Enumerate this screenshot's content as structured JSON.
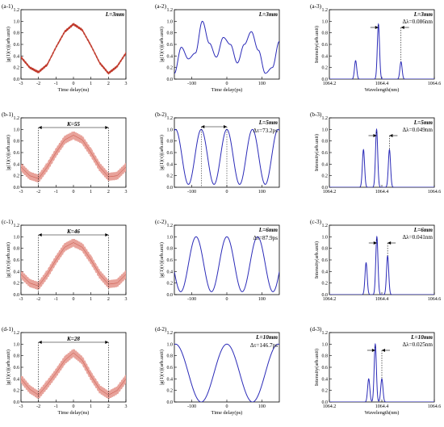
{
  "colors": {
    "envelope_trace": "#c0392b",
    "envelope_fill": "#e8a29a",
    "interferogram": "#2b2bb8",
    "spectrum": "#2b2bb8",
    "axes": "#000000"
  },
  "chart_data": [
    {
      "id": "a1",
      "type": "line",
      "panel_label": "(a-1)",
      "corner_label": "L=3mm",
      "xlabel": "Time delay(ns)",
      "ylabel": "|g(1)(τ)|(arb.unit)",
      "xlim": [
        -3,
        3
      ],
      "ylim": [
        0,
        1.2
      ],
      "xticks": [
        -3,
        -2,
        -1,
        0,
        1,
        2,
        3
      ],
      "yticks": [
        0,
        0.2,
        0.4,
        0.6,
        0.8,
        1.0,
        1.2
      ],
      "series": [
        {
          "values_x": [
            -3,
            -2.5,
            -2,
            -1.5,
            -1,
            -0.5,
            0,
            0.5,
            1,
            1.5,
            2,
            2.5,
            3
          ],
          "values_y": [
            0.38,
            0.2,
            0.12,
            0.25,
            0.55,
            0.82,
            0.95,
            0.85,
            0.58,
            0.28,
            0.1,
            0.22,
            0.45
          ]
        }
      ]
    },
    {
      "id": "a2",
      "type": "line",
      "panel_label": "(a-2)",
      "corner_label": "L=3mm",
      "xlabel": "Time delay(ps)",
      "ylabel": "|g(1)(τ)|(arb.unit)",
      "xlim": [
        -150,
        150
      ],
      "ylim": [
        0,
        1.2
      ],
      "xticks": [
        -100,
        0,
        100
      ],
      "yticks": [
        0,
        0.2,
        0.4,
        0.6,
        0.8,
        1.0,
        1.2
      ],
      "series": [
        {
          "values_x": [
            -150,
            -130,
            -110,
            -90,
            -70,
            -50,
            -30,
            -10,
            10,
            30,
            50,
            70,
            90,
            110,
            130,
            150
          ],
          "values_y": [
            0.1,
            0.55,
            0.35,
            0.45,
            1.0,
            0.62,
            0.38,
            0.72,
            0.6,
            0.28,
            0.6,
            0.82,
            0.5,
            0.1,
            0.2,
            0.65
          ]
        }
      ]
    },
    {
      "id": "a3",
      "type": "line",
      "panel_label": "(a-3)",
      "corner_label": "L=3mm",
      "annotation": "Δλ=0.086nm",
      "xlabel": "Wavelength(nm)",
      "ylabel": "Intensity(arb.unit)",
      "xlim": [
        1064.2,
        1064.6
      ],
      "ylim": [
        0,
        1.2
      ],
      "xticks": [
        1064.2,
        1064.4,
        1064.6
      ],
      "yticks": [
        0,
        0.2,
        0.4,
        0.6,
        0.8,
        1.0,
        1.2
      ],
      "peaks": [
        {
          "x": 1064.3,
          "y": 0.32
        },
        {
          "x": 1064.387,
          "y": 0.95
        },
        {
          "x": 1064.473,
          "y": 0.3
        }
      ]
    },
    {
      "id": "b1",
      "type": "line",
      "panel_label": "(b-1)",
      "annotation": "K=55",
      "xlabel": "",
      "ylabel": "|g(1)(τ)|(arb.unit)",
      "xlim": [
        -3,
        3
      ],
      "ylim": [
        0,
        1.2
      ],
      "xticks": [
        -3,
        -2,
        -1,
        0,
        1,
        2,
        3
      ],
      "yticks": [
        0,
        0.2,
        0.4,
        0.6,
        0.8,
        1.0,
        1.2
      ],
      "series": [
        {
          "values_x": [
            -3,
            -2.5,
            -2,
            -1.5,
            -1,
            -0.5,
            0,
            0.5,
            1,
            1.5,
            2,
            2.5,
            3
          ],
          "values_y": [
            0.35,
            0.2,
            0.15,
            0.35,
            0.6,
            0.82,
            0.9,
            0.82,
            0.6,
            0.35,
            0.18,
            0.2,
            0.35
          ]
        }
      ]
    },
    {
      "id": "b2",
      "type": "line",
      "panel_label": "(b-2)",
      "corner_label": "L=5mm",
      "annotation": "Δτ=73.2ps",
      "xlabel": "",
      "ylabel": "|g(1)(τ)|(arb.unit)",
      "xlim": [
        -150,
        150
      ],
      "ylim": [
        0,
        1.2
      ],
      "xticks": [
        -100,
        0,
        100
      ],
      "yticks": [
        0,
        0.2,
        0.4,
        0.6,
        0.8,
        1.0,
        1.2
      ],
      "series": [
        {
          "period": 73.2,
          "peak": 1.0,
          "dip": 0.05
        }
      ]
    },
    {
      "id": "b3",
      "type": "line",
      "panel_label": "(b-3)",
      "corner_label": "L=5mm",
      "annotation": "Δλ=0.049nm",
      "xlabel": "",
      "ylabel": "Intensity(arb.unit)",
      "xlim": [
        1064.2,
        1064.6
      ],
      "ylim": [
        0,
        1.2
      ],
      "xticks": [
        1064.2,
        1064.4,
        1064.6
      ],
      "yticks": [
        0,
        0.2,
        0.4,
        0.6,
        0.8,
        1.0,
        1.2
      ],
      "peaks": [
        {
          "x": 1064.33,
          "y": 0.65
        },
        {
          "x": 1064.38,
          "y": 1.0
        },
        {
          "x": 1064.429,
          "y": 0.65
        }
      ]
    },
    {
      "id": "c1",
      "type": "line",
      "panel_label": "(c-1)",
      "annotation": "K=46",
      "xlabel": "",
      "ylabel": "|g(1)(τ)|(arb.unit)",
      "xlim": [
        -3,
        3
      ],
      "ylim": [
        0,
        1.2
      ],
      "xticks": [
        -3,
        -2,
        -1,
        0,
        1,
        2,
        3
      ],
      "yticks": [
        0,
        0.2,
        0.4,
        0.6,
        0.8,
        1.0,
        1.2
      ],
      "series": [
        {
          "values_x": [
            -3,
            -2.5,
            -2,
            -1.5,
            -1,
            -0.5,
            0,
            0.5,
            1,
            1.5,
            2,
            2.5,
            3
          ],
          "values_y": [
            0.35,
            0.2,
            0.15,
            0.35,
            0.6,
            0.82,
            0.9,
            0.82,
            0.6,
            0.35,
            0.18,
            0.2,
            0.35
          ]
        }
      ]
    },
    {
      "id": "c2",
      "type": "line",
      "panel_label": "(c-2)",
      "corner_label": "L=6mm",
      "annotation": "Δτ=87.9ps",
      "xlabel": "",
      "ylabel": "|g(1)(τ)|(arb.unit)",
      "xlim": [
        -150,
        150
      ],
      "ylim": [
        0,
        1.2
      ],
      "xticks": [
        -100,
        0,
        100
      ],
      "yticks": [
        0,
        0.2,
        0.4,
        0.6,
        0.8,
        1.0,
        1.2
      ],
      "series": [
        {
          "period": 87.9,
          "peak": 1.0,
          "dip": 0.05
        }
      ]
    },
    {
      "id": "c3",
      "type": "line",
      "panel_label": "(c-3)",
      "corner_label": "L=6mm",
      "annotation": "Δλ=0.041nm",
      "xlabel": "",
      "ylabel": "Intensity(arb.unit)",
      "xlim": [
        1064.2,
        1064.6
      ],
      "ylim": [
        0,
        1.2
      ],
      "xticks": [
        1064.2,
        1064.4,
        1064.6
      ],
      "yticks": [
        0,
        0.2,
        0.4,
        0.6,
        0.8,
        1.0,
        1.2
      ],
      "peaks": [
        {
          "x": 1064.34,
          "y": 0.55
        },
        {
          "x": 1064.381,
          "y": 1.0
        },
        {
          "x": 1064.422,
          "y": 0.67
        }
      ]
    },
    {
      "id": "d1",
      "type": "line",
      "panel_label": "(d-1)",
      "annotation": "K=28",
      "xlabel": "Time delay(ns)",
      "ylabel": "|g(1)(τ)|(arb.unit)",
      "xlim": [
        -3,
        3
      ],
      "ylim": [
        0,
        1.2
      ],
      "xticks": [
        -3,
        -2,
        -1,
        0,
        1,
        2,
        3
      ],
      "yticks": [
        0,
        0.2,
        0.4,
        0.6,
        0.8,
        1.0,
        1.2
      ],
      "series": [
        {
          "values_x": [
            -3,
            -2.5,
            -2,
            -1.5,
            -1,
            -0.5,
            0,
            0.5,
            1,
            1.5,
            2,
            2.5,
            3
          ],
          "values_y": [
            0.4,
            0.22,
            0.12,
            0.3,
            0.5,
            0.72,
            0.85,
            0.72,
            0.45,
            0.22,
            0.12,
            0.2,
            0.4
          ]
        }
      ]
    },
    {
      "id": "d2",
      "type": "line",
      "panel_label": "(d-2)",
      "corner_label": "L=10mm",
      "annotation": "Δτ=146.7ps",
      "xlabel": "Time delay(ps)",
      "ylabel": "|g(1)(τ)|(arb.unit)",
      "xlim": [
        -150,
        150
      ],
      "ylim": [
        0,
        1.2
      ],
      "xticks": [
        -100,
        0,
        100
      ],
      "yticks": [
        0,
        0.2,
        0.4,
        0.6,
        0.8,
        1.0,
        1.2
      ],
      "series": [
        {
          "period": 146.7,
          "peak": 1.0,
          "dip": 0.0
        }
      ]
    },
    {
      "id": "d3",
      "type": "line",
      "panel_label": "(d-3)",
      "corner_label": "L=10mm",
      "annotation": "Δλ=0.025nm",
      "xlabel": "Wavelength(nm)",
      "ylabel": "Intensity(arb.unit)",
      "xlim": [
        1064.2,
        1064.6
      ],
      "ylim": [
        0,
        1.2
      ],
      "xticks": [
        1064.2,
        1064.4,
        1064.6
      ],
      "yticks": [
        0,
        0.2,
        0.4,
        0.6,
        0.8,
        1.0,
        1.2
      ],
      "peaks": [
        {
          "x": 1064.35,
          "y": 0.4
        },
        {
          "x": 1064.375,
          "y": 1.0
        },
        {
          "x": 1064.4,
          "y": 0.4
        }
      ]
    }
  ]
}
